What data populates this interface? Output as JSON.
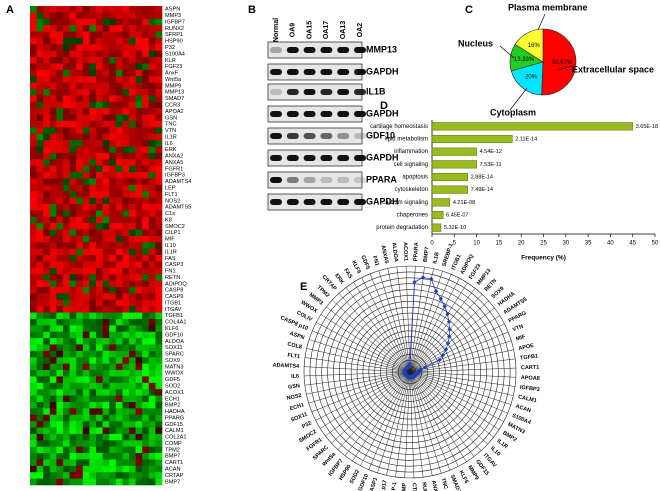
{
  "panel_labels": [
    "A",
    "B",
    "C",
    "D",
    "E"
  ],
  "heatmap": {
    "genes": [
      "ASPN",
      "MMP3",
      "IGFBP7",
      "RUNX2",
      "SFRP1",
      "HSP90",
      "P32",
      "S100A4",
      "KLR",
      "FGF23",
      "AnxF",
      "Wnt5a",
      "MMP9",
      "MMP13",
      "SMAD7",
      "CCR3",
      "APOA2",
      "GSN",
      "TNC",
      "VTN",
      "IL1R",
      "IL6",
      "ERK",
      "ANXA2",
      "ANXA5",
      "FGFR1",
      "IGFBP3",
      "ADAMTS4",
      "LEP",
      "FLT1",
      "NOS2",
      "ADAMTS5",
      "C1s",
      "K8",
      "SMOC2",
      "CILP1",
      "MIF",
      "IL10",
      "IL1R",
      "FAS",
      "CASP3",
      "FN1",
      "RETN",
      "ADIPOQ",
      "CASP8",
      "CASP9",
      "ITGB1",
      "ITGAV",
      "TGFB1",
      "COL4A1",
      "KLF6",
      "GDF10",
      "ALDOA",
      "SOX11",
      "SPARC",
      "SOX9",
      "MATN3",
      "WWOX",
      "GDF5",
      "SOD2",
      "ACOX1",
      "ECH1",
      "BMP2",
      "HADHA",
      "PPARG",
      "GDF15",
      "CALM1",
      "COL2A1",
      "COMP",
      "TPM2",
      "BMP7",
      "CART1",
      "ACAN",
      "CRTAP",
      "BMP7"
    ]
  },
  "western_blot": {
    "samples": [
      "Normal",
      "OA9",
      "OA15",
      "OA17",
      "OA13",
      "OA2"
    ],
    "proteins": [
      "MMP13",
      "GAPDH",
      "IL1B",
      "GAPDH",
      "GDF10",
      "GAPDH",
      "PPARA",
      "GAPDH"
    ]
  },
  "chart_data": [
    {
      "type": "pie",
      "categories": [
        "Extracellular space",
        "Cytoplasm",
        "Nucleus",
        "Plasma membrane"
      ],
      "values": [
        50.67,
        20,
        13.33,
        16
      ],
      "value_labels": [
        "50.67%",
        "20%",
        "13.33%",
        "16%"
      ],
      "colors": [
        "#ff0000",
        "#00e5ff",
        "#22cc22",
        "#ffff33"
      ]
    },
    {
      "type": "hbar",
      "categories": [
        "cartilage homeostasis",
        "lipid metabolism",
        "inflammation",
        "cell signaling",
        "apoptosis",
        "cytoskeleton",
        "calcium signaling",
        "chaperones",
        "protein degradation"
      ],
      "values": [
        45,
        18,
        10,
        10,
        8,
        8,
        4,
        2.5,
        2
      ],
      "annotations": [
        "3.65E-18",
        "2.11E-14",
        "4.54E-12",
        "7.53E-11",
        "2.88E-14",
        "7.49E-14",
        "4.21E-08",
        "6.45E-07",
        "5.32E-10"
      ],
      "color": "#99bb22",
      "xlim": [
        0,
        50
      ],
      "xticks": [
        0,
        5,
        10,
        15,
        20,
        25,
        30,
        35,
        40,
        45,
        50
      ],
      "xlabel": "Frequency (%)"
    },
    {
      "type": "radar",
      "rlim": [
        0,
        10
      ],
      "color": "#1f3fbf",
      "categories": [
        "PPARA",
        "BMP7",
        "IL1B",
        "SREBP-1",
        "ITGB1",
        "ADIPOQ",
        "FGF23",
        "MMP13",
        "RETN",
        "SOX9",
        "HADHA",
        "ADAMTS5",
        "PPARG",
        "VTN",
        "MIF",
        "APOE",
        "TGFB1",
        "CART1",
        "APOA8",
        "IGFBP3",
        "CALM1",
        "ACAN",
        "S100A4",
        "MATN3",
        "BMP2",
        "IL1R",
        "IL10",
        "ITGAV",
        "GDF15",
        "MMP9",
        "KLF6",
        "SMAD7",
        "TNC",
        "ANXA2",
        "RUNX2",
        "CTR",
        "COMP",
        "CILP-1",
        "CASP3 p17",
        "CASP1",
        "GDF10",
        "SOD2",
        "HSP90",
        "IGFBP7",
        "Wnt5a",
        "SPARC",
        "FGFR1",
        "SMOC2",
        "P32",
        "SOX11",
        "ECH1",
        "NOS2",
        "GSN",
        "IL6",
        "ADAMTS4",
        "FLT1",
        "COL8",
        "ASPN",
        "CASP8 p10",
        "COLIV",
        "WWOX",
        "MMP3",
        "TPM2",
        "CRTAP",
        "ERK",
        "FAS",
        "KLF6",
        "GDF5",
        "FN1",
        "ANXA5",
        "ALDOA",
        "ACOX1"
      ],
      "values": [
        8.5,
        9,
        9,
        8,
        7.5,
        7,
        6.5,
        6,
        5.5,
        5,
        4.5,
        4,
        3.5,
        3,
        1.5,
        1,
        1,
        0.8,
        0.8,
        0.8,
        0.6,
        0.6,
        0.6,
        0.6,
        0.6,
        0.6,
        0.6,
        0.6,
        0.6,
        0.5,
        0.5,
        0.5,
        0.5,
        0.5,
        0.5,
        0.5,
        0.5,
        0.5,
        0.5,
        0.5,
        0.5,
        0.5,
        0.5,
        0.5,
        0.5,
        0.5,
        0.5,
        0.5,
        0.5,
        0.5,
        0.5,
        0.5,
        0.5,
        0.5,
        0.5,
        0.5,
        0.5,
        0.5,
        0.5,
        0.5,
        0.5,
        0.5,
        0.5,
        0.5,
        0.5,
        0.5,
        0.5,
        0.5,
        0.5,
        0.5,
        0.6,
        0.8
      ]
    }
  ]
}
